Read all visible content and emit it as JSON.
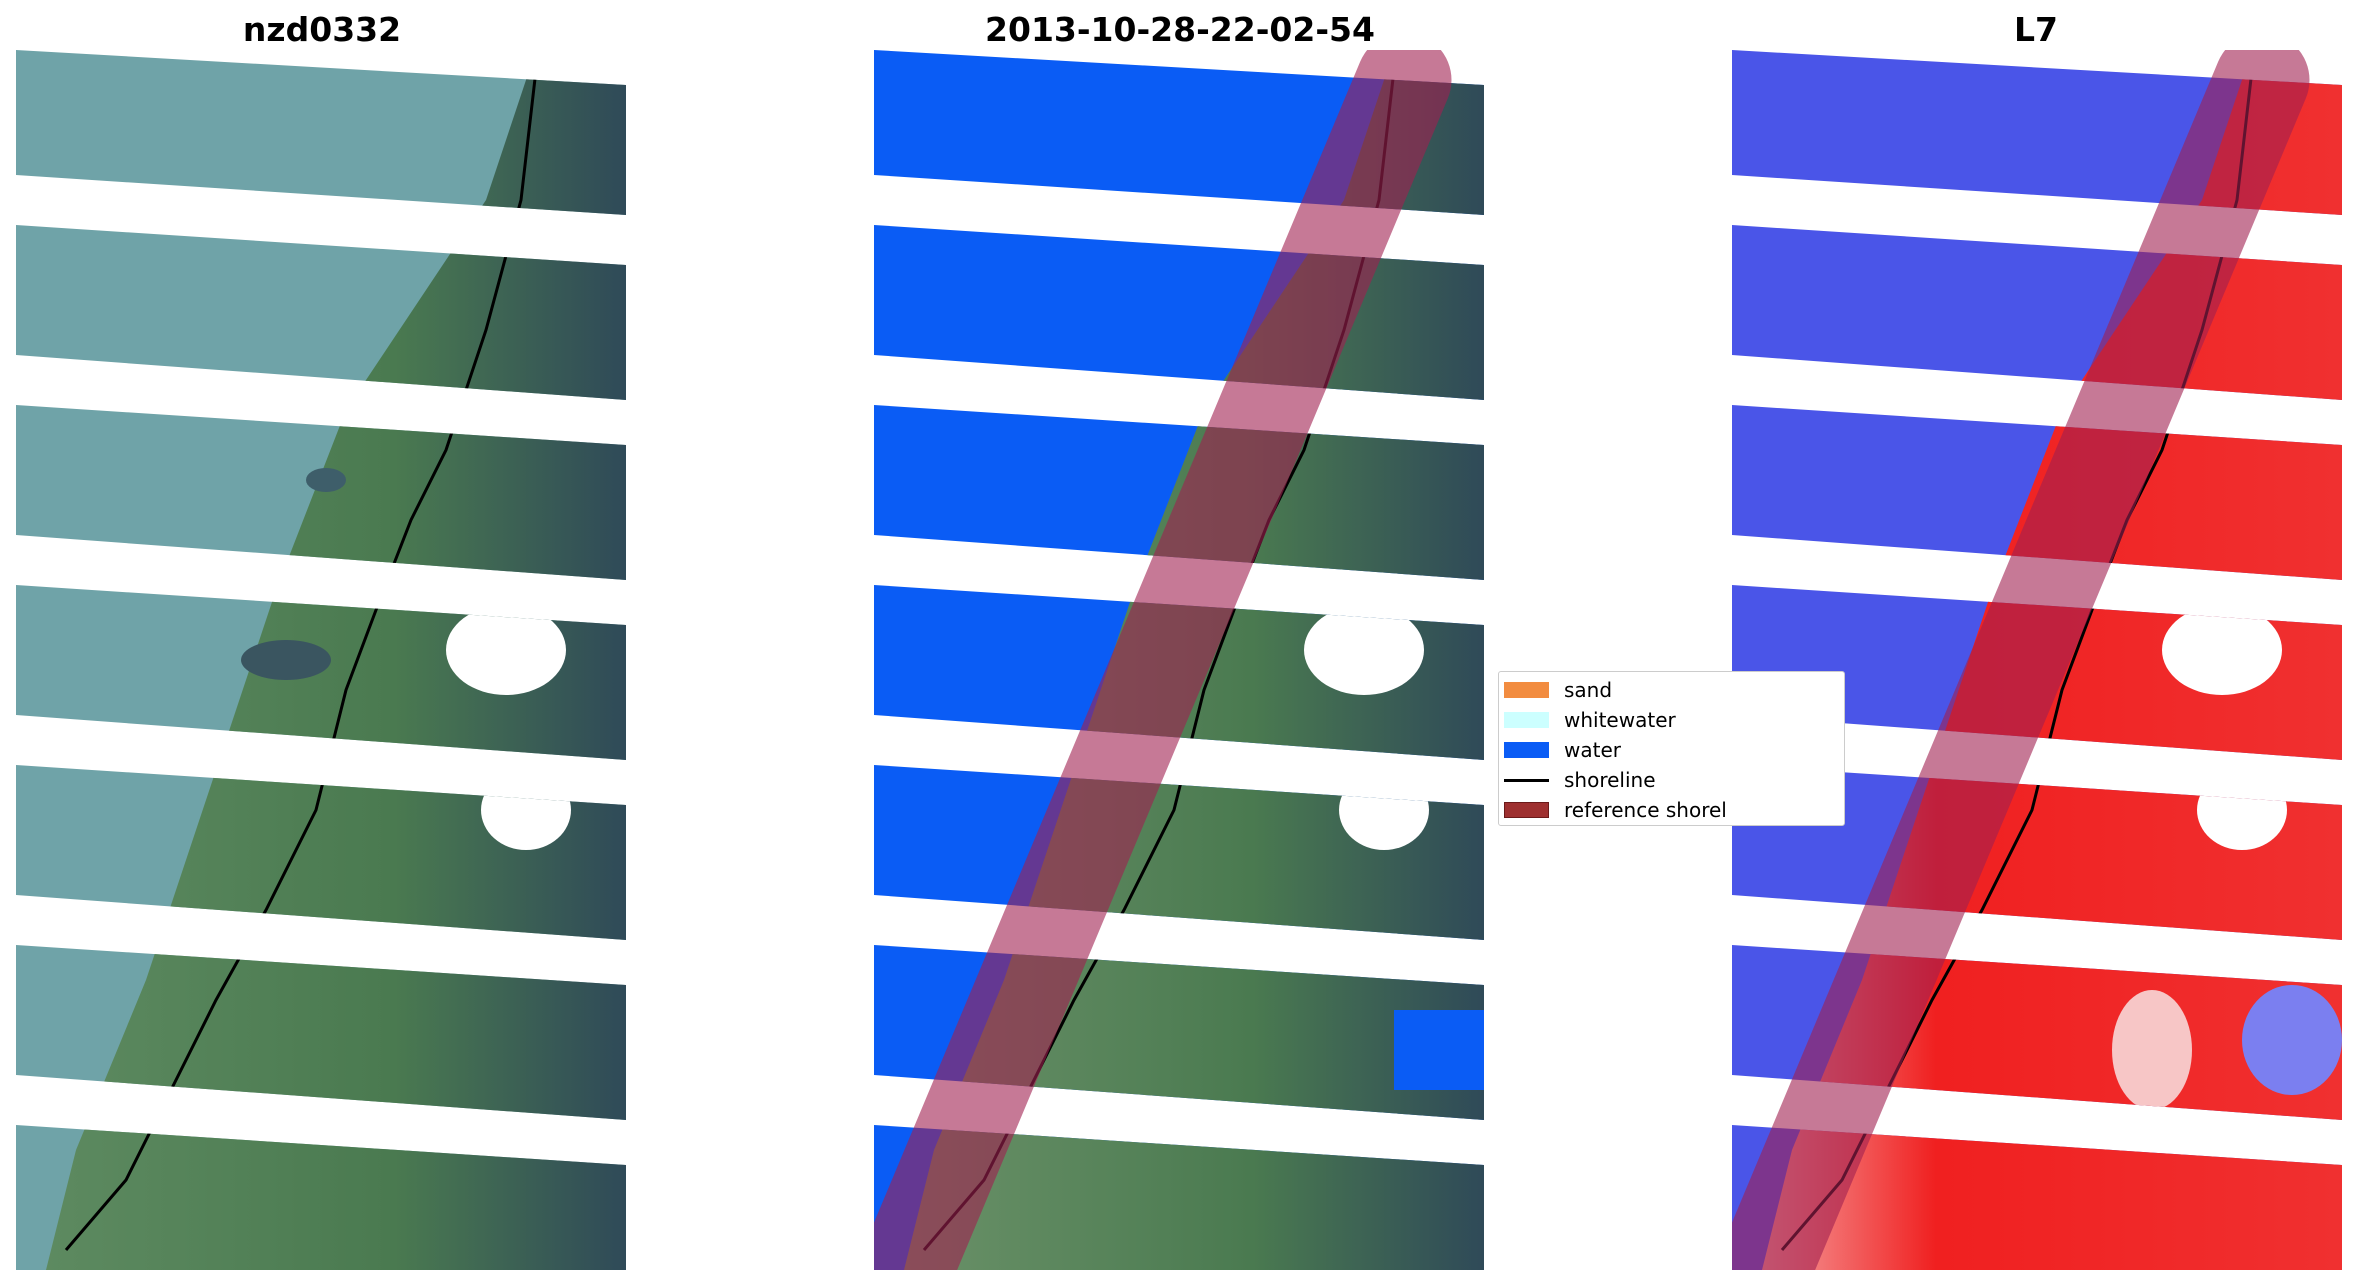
{
  "panels": [
    {
      "title": "nzd0332",
      "kind": "rgb-image"
    },
    {
      "title": "2013-10-28-22-02-54",
      "kind": "classified-image"
    },
    {
      "title": "L7",
      "kind": "water-index-image"
    }
  ],
  "legend": {
    "items": [
      {
        "label": "sand",
        "color": "#f28c40",
        "type": "patch"
      },
      {
        "label": "whitewater",
        "color": "#ccffff",
        "type": "patch"
      },
      {
        "label": "water",
        "color": "#0a5cf5",
        "type": "patch"
      },
      {
        "label": "shoreline",
        "color": "#000000",
        "type": "line"
      },
      {
        "label": "reference shorel",
        "color": "#9e3030",
        "type": "patch"
      }
    ]
  },
  "colors": {
    "sea": "#6fa3a8",
    "land_green": "#4f7d55",
    "land_dark": "#2f4a58",
    "water_class": "#0a5cf5",
    "index_water": "#4a55e8",
    "index_land": "#f02020",
    "reference_band": "#a02050"
  }
}
